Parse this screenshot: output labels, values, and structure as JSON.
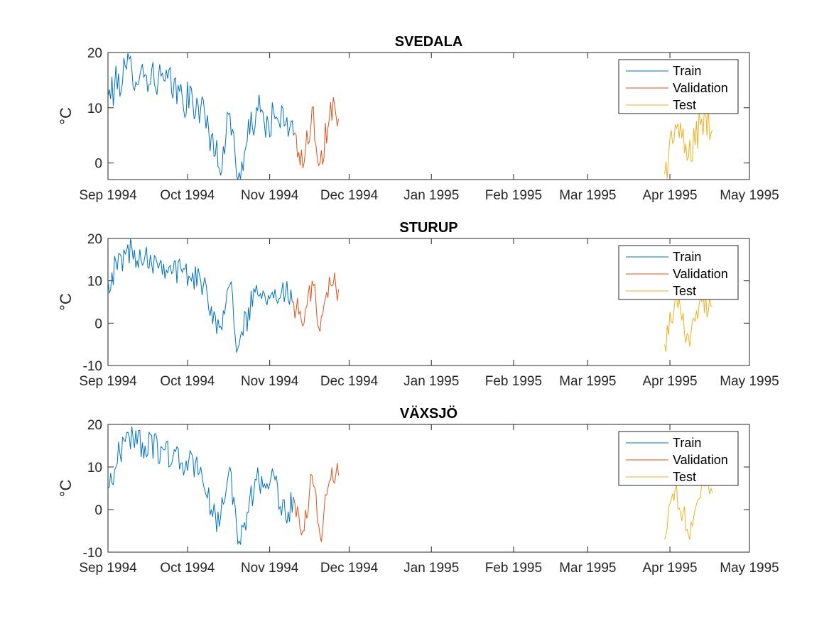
{
  "colors": {
    "train": "#0072BD",
    "validation": "#D95319",
    "test": "#EDB120",
    "axis": "#262626"
  },
  "chart_data": [
    {
      "type": "line",
      "title": "SVEDALA",
      "ylabel": "°C",
      "xlim": [
        "1994-09-01",
        "1995-05-01"
      ],
      "ylim": [
        -3,
        20
      ],
      "yticks": [
        0,
        10,
        20
      ],
      "xticks": [
        "1994-09-01",
        "1994-10-01",
        "1994-11-01",
        "1994-12-01",
        "1995-01-01",
        "1995-02-01",
        "1995-03-01",
        "1995-04-01",
        "1995-05-01"
      ],
      "xtick_labels": [
        "Sep 1994",
        "Oct 1994",
        "Nov 1994",
        "Dec 1994",
        "Jan 1995",
        "Feb 1995",
        "Mar 1995",
        "Apr 1995",
        "May 1995"
      ],
      "legend": {
        "location": "top-right",
        "entries": [
          "Train",
          "Validation",
          "Test"
        ]
      },
      "series": [
        {
          "name": "Train",
          "x": [
            "1994-09-01",
            "1994-09-08",
            "1994-09-15",
            "1994-09-22",
            "1994-09-29",
            "1994-10-06",
            "1994-10-10",
            "1994-10-13",
            "1994-10-17",
            "1994-10-20",
            "1994-10-27",
            "1994-10-30",
            "1994-11-03",
            "1994-11-07",
            "1994-11-10"
          ],
          "y": [
            12,
            17,
            16,
            15,
            12,
            10,
            5,
            -1,
            9,
            -3,
            10,
            7,
            8,
            7,
            5
          ]
        },
        {
          "name": "Validation",
          "x": [
            "1994-11-10",
            "1994-11-14",
            "1994-11-17",
            "1994-11-20",
            "1994-11-24",
            "1994-11-27"
          ],
          "y": [
            5,
            0,
            10,
            0,
            11,
            8
          ]
        },
        {
          "name": "Test",
          "x": [
            "1995-03-30",
            "1995-04-03",
            "1995-04-08",
            "1995-04-13",
            "1995-04-17"
          ],
          "y": [
            -2,
            7,
            1,
            8,
            6
          ]
        }
      ]
    },
    {
      "type": "line",
      "title": "STURUP",
      "ylabel": "°C",
      "xlim": [
        "1994-09-01",
        "1995-05-01"
      ],
      "ylim": [
        -10,
        20
      ],
      "yticks": [
        -10,
        0,
        10,
        20
      ],
      "xticks": [
        "1994-09-01",
        "1994-10-01",
        "1994-11-01",
        "1994-12-01",
        "1995-01-01",
        "1995-02-01",
        "1995-03-01",
        "1995-04-01",
        "1995-05-01"
      ],
      "xtick_labels": [
        "Sep 1994",
        "Oct 1994",
        "Nov 1994",
        "Dec 1994",
        "Jan 1995",
        "Feb 1995",
        "Mar 1995",
        "Apr 1995",
        "May 1995"
      ],
      "legend": {
        "location": "top-right",
        "entries": [
          "Train",
          "Validation",
          "Test"
        ]
      },
      "series": [
        {
          "name": "Train",
          "x": [
            "1994-09-01",
            "1994-09-08",
            "1994-09-15",
            "1994-09-22",
            "1994-09-29",
            "1994-10-06",
            "1994-10-10",
            "1994-10-13",
            "1994-10-17",
            "1994-10-20",
            "1994-10-27",
            "1994-10-30",
            "1994-11-03",
            "1994-11-07",
            "1994-11-10"
          ],
          "y": [
            10,
            17,
            16,
            14,
            12,
            10,
            4,
            -1,
            9,
            -6,
            9,
            7,
            8,
            7,
            5
          ]
        },
        {
          "name": "Validation",
          "x": [
            "1994-11-10",
            "1994-11-14",
            "1994-11-17",
            "1994-11-20",
            "1994-11-24",
            "1994-11-27"
          ],
          "y": [
            5,
            0,
            10,
            -2,
            9,
            8
          ]
        },
        {
          "name": "Test",
          "x": [
            "1995-03-30",
            "1995-04-03",
            "1995-04-08",
            "1995-04-13",
            "1995-04-17"
          ],
          "y": [
            -5,
            6,
            -3,
            5,
            4
          ]
        }
      ]
    },
    {
      "type": "line",
      "title": "VÄXSJÖ",
      "ylabel": "°C",
      "xlim": [
        "1994-09-01",
        "1995-05-01"
      ],
      "ylim": [
        -10,
        20
      ],
      "yticks": [
        -10,
        0,
        10,
        20
      ],
      "xticks": [
        "1994-09-01",
        "1994-10-01",
        "1994-11-01",
        "1994-12-01",
        "1995-01-01",
        "1995-02-01",
        "1995-03-01",
        "1995-04-01",
        "1995-05-01"
      ],
      "xtick_labels": [
        "Sep 1994",
        "Oct 1994",
        "Nov 1994",
        "Dec 1994",
        "Jan 1995",
        "Feb 1995",
        "Mar 1995",
        "Apr 1995",
        "May 1995"
      ],
      "legend": {
        "location": "top-right",
        "entries": [
          "Train",
          "Validation",
          "Test"
        ]
      },
      "series": [
        {
          "name": "Train",
          "x": [
            "1994-09-01",
            "1994-09-08",
            "1994-09-15",
            "1994-09-22",
            "1994-09-29",
            "1994-10-06",
            "1994-10-10",
            "1994-10-13",
            "1994-10-17",
            "1994-10-20",
            "1994-10-27",
            "1994-10-30",
            "1994-11-03",
            "1994-11-07",
            "1994-11-10"
          ],
          "y": [
            5,
            18,
            15,
            14,
            11,
            10,
            0,
            -4,
            10,
            -8,
            7,
            6,
            7,
            -2,
            3
          ]
        },
        {
          "name": "Validation",
          "x": [
            "1994-11-10",
            "1994-11-14",
            "1994-11-17",
            "1994-11-20",
            "1994-11-24",
            "1994-11-27"
          ],
          "y": [
            3,
            -5,
            8,
            -6,
            7,
            8
          ]
        },
        {
          "name": "Test",
          "x": [
            "1995-03-30",
            "1995-04-03",
            "1995-04-08",
            "1995-04-13",
            "1995-04-17"
          ],
          "y": [
            -7,
            5,
            -6,
            6,
            4
          ]
        }
      ]
    }
  ]
}
